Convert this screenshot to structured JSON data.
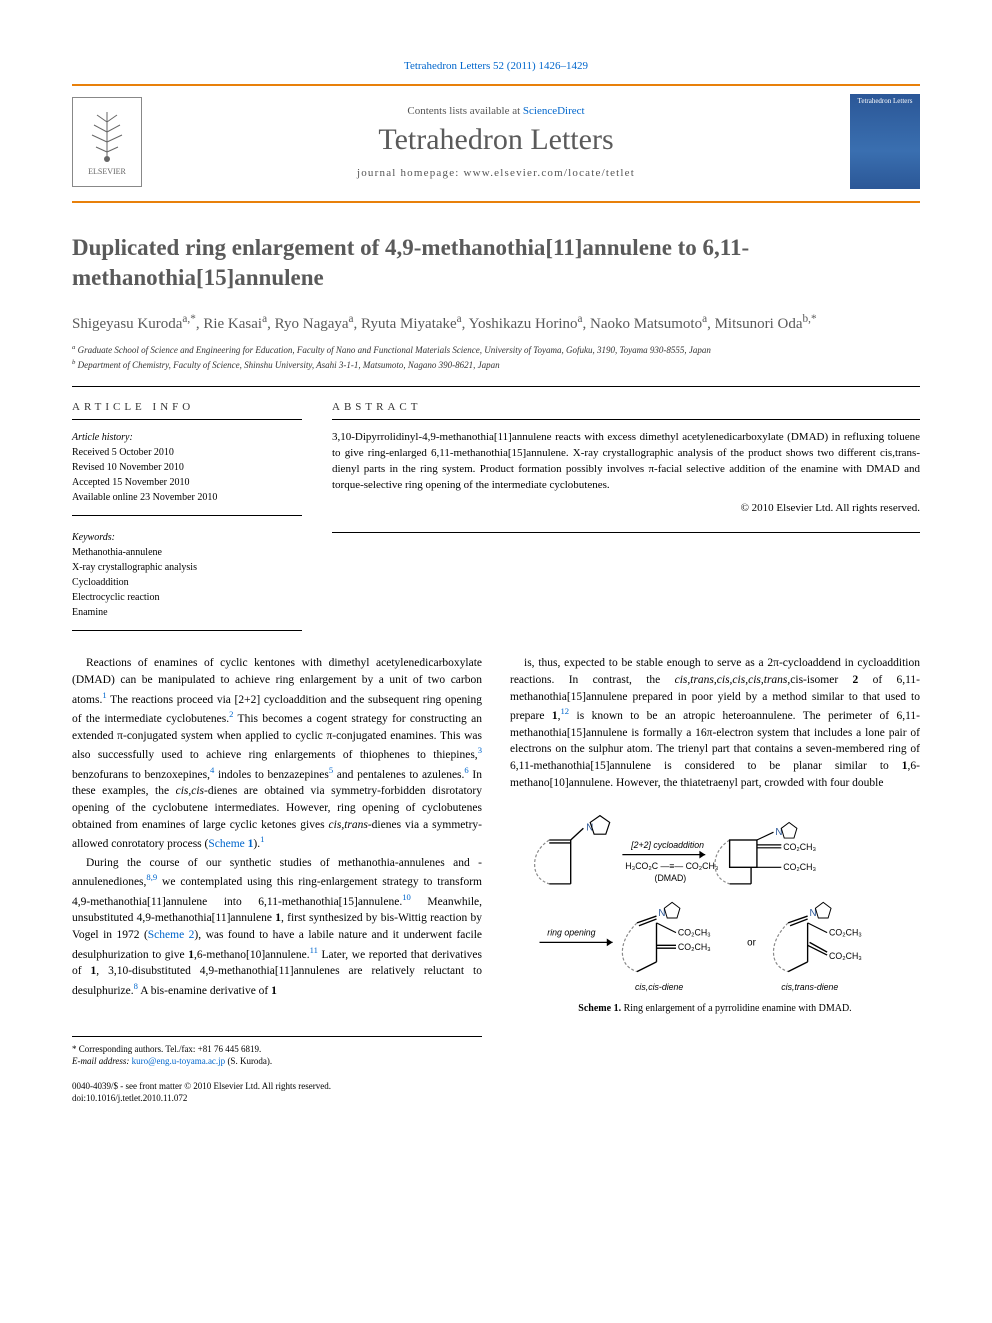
{
  "citation": "Tetrahedron Letters 52 (2011) 1426–1429",
  "header": {
    "contents_prefix": "Contents lists available at ",
    "contents_link": "ScienceDirect",
    "journal": "Tetrahedron Letters",
    "homepage_label": "journal homepage: ",
    "homepage_url": "www.elsevier.com/locate/tetlet",
    "publisher": "ELSEVIER",
    "cover_text": "Tetrahedron Letters"
  },
  "title": "Duplicated ring enlargement of 4,9-methanothia[11]annulene to 6,11-methanothia[15]annulene",
  "authors_html": "Shigeyasu Kuroda<sup>a,*</sup>, Rie Kasai<sup>a</sup>, Ryo Nagaya<sup>a</sup>, Ryuta Miyatake<sup>a</sup>, Yoshikazu Horino<sup>a</sup>, Naoko Matsumoto<sup>a</sup>, Mitsunori Oda<sup>b,*</sup>",
  "affiliations": [
    "Graduate School of Science and Engineering for Education, Faculty of Nano and Functional Materials Science, University of Toyama, Gofuku, 3190, Toyama 930-8555, Japan",
    "Department of Chemistry, Faculty of Science, Shinshu University, Asahi 3-1-1, Matsumoto, Nagano 390-8621, Japan"
  ],
  "article_info": {
    "heading": "ARTICLE INFO",
    "history_label": "Article history:",
    "received": "Received 5 October 2010",
    "revised": "Revised 10 November 2010",
    "accepted": "Accepted 15 November 2010",
    "online": "Available online 23 November 2010",
    "keywords_label": "Keywords:",
    "keywords": [
      "Methanothia-annulene",
      "X-ray crystallographic analysis",
      "Cycloaddition",
      "Electrocyclic reaction",
      "Enamine"
    ]
  },
  "abstract": {
    "heading": "ABSTRACT",
    "text": "3,10-Dipyrrolidinyl-4,9-methanothia[11]annulene reacts with excess dimethyl acetylenedicarboxylate (DMAD) in refluxing toluene to give ring-enlarged 6,11-methanothia[15]annulene. X-ray crystallographic analysis of the product shows two different cis,trans-dienyl parts in the ring system. Product formation possibly involves π-facial selective addition of the enamine with DMAD and torque-selective ring opening of the intermediate cyclobutenes.",
    "copyright": "© 2010 Elsevier Ltd. All rights reserved."
  },
  "body": {
    "col1": {
      "p1": "Reactions of enamines of cyclic kentones with dimethyl acetylenedicarboxylate (DMAD) can be manipulated to achieve ring enlargement by a unit of two carbon atoms.¹ The reactions proceed via [2+2] cycloaddition and the subsequent ring opening of the intermediate cyclobutenes.² This becomes a cogent strategy for constructing an extended π-conjugated system when applied to cyclic π-conjugated enamines. This was also successfully used to achieve ring enlargements of thiophenes to thiepines,³ benzofurans to benzoxepines,⁴ indoles to benzazepines⁵ and pentalenes to azulenes.⁶ In these examples, the cis,cis-dienes are obtained via symmetry-forbidden disrotatory opening of the cyclobutene intermediates. However, ring opening of cyclobutenes obtained from enamines of large cyclic ketones gives cis,trans-dienes via a symmetry-allowed conrotatory process (Scheme 1).¹",
      "p2": "During the course of our synthetic studies of methanothia-annulenes and -annulenediones,⁸˒⁹ we contemplated using this ring-enlargement strategy to transform 4,9-methanothia[11]annulene into 6,11-methanothia[15]annulene.¹⁰ Meanwhile, unsubstituted 4,9-methanothia[11]annulene 1, first synthesized by bis-Wittig reaction by Vogel in 1972 (Scheme 2), was found to have a labile nature and it underwent facile desulphurization to give 1,6-methano[10]annulene.¹¹ Later, we reported that derivatives of 1, 3,10-disubstituted 4,9-methanothia[11]annulenes are relatively reluctant to desulphurize.⁸ A bis-enamine derivative of 1"
    },
    "col2": {
      "p1": "is, thus, expected to be stable enough to serve as a 2π-cycloaddend in cycloaddition reactions. In contrast, the cis,trans,cis,cis,cis,trans,cis-isomer 2 of 6,11-methanothia[15]annulene prepared in poor yield by a method similar to that used to prepare 1,¹² is known to be an atropic heteroannulene. The perimeter of 6,11-methanothia[15]annulene is formally a 16π-electron system that includes a lone pair of electrons on the sulphur atom. The trienyl part that contains a seven-membered ring of 6,11-methanothia[15]annulene is considered to be planar similar to 1,6-methano[10]annulene. However, the thiatetraenyl part, crowded with four double"
    }
  },
  "scheme1": {
    "caption_label": "Scheme 1.",
    "caption_text": "Ring enlargement of a pyrrolidine enamine with DMAD.",
    "labels": {
      "reaction1": "[2+2] cycloaddition",
      "dmad": "(DMAD)",
      "reagent_top": "H₃CO₂C",
      "reagent_bot": "CO₂CH₃",
      "ring_opening": "ring opening",
      "or": "or",
      "product1": "cis,cis-diene",
      "product2": "cis,trans-diene",
      "cooch3": "CO₂CH₃"
    },
    "colors": {
      "atom_n": "#2b5797",
      "bond": "#000000",
      "arrow": "#000000",
      "dashed": "#888888"
    }
  },
  "footnotes": {
    "corresponding": "* Corresponding authors. Tel./fax: +81 76 445 6819.",
    "email_label": "E-mail address:",
    "email": "kuro@eng.u-toyama.ac.jp",
    "email_who": "(S. Kuroda)."
  },
  "bottom": {
    "issn_line": "0040-4039/$ - see front matter © 2010 Elsevier Ltd. All rights reserved.",
    "doi": "doi:10.1016/j.tetlet.2010.11.072"
  }
}
